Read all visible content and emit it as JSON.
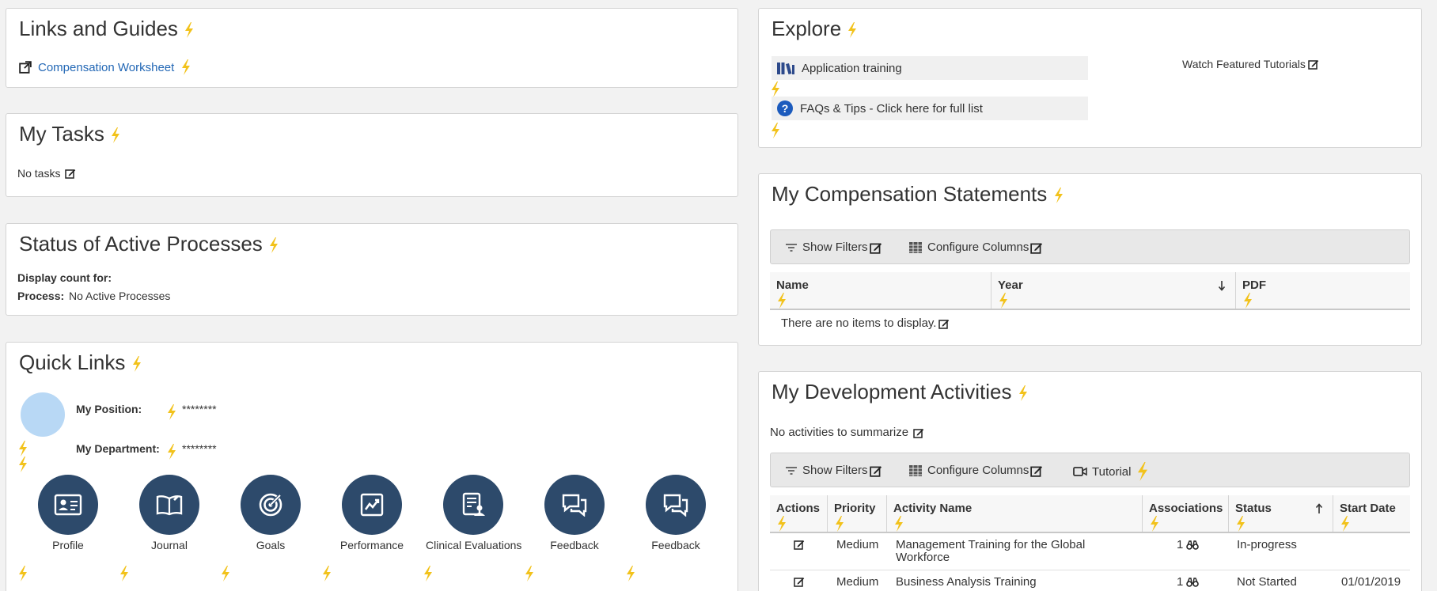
{
  "colors": {
    "accent": "#2267b5",
    "bolt": "#f2c21b",
    "circle": "#2d4a6b",
    "avatar": "#b8d8f5"
  },
  "links_and_guides": {
    "title": "Links and Guides",
    "link_label": "Compensation Worksheet"
  },
  "my_tasks": {
    "title": "My Tasks",
    "empty_text": "No tasks"
  },
  "active_processes": {
    "title": "Status of Active Processes",
    "display_count_label": "Display count for:",
    "process_label": "Process:",
    "process_value": "No Active Processes"
  },
  "quick_links": {
    "title": "Quick Links",
    "position_label": "My Position:",
    "position_value": "********",
    "department_label": "My Department:",
    "department_value": "********",
    "items": [
      {
        "label": "Profile",
        "icon": "profile-card-icon"
      },
      {
        "label": "Journal",
        "icon": "journal-book-icon"
      },
      {
        "label": "Goals",
        "icon": "goals-target-icon"
      },
      {
        "label": "Performance",
        "icon": "performance-chart-icon"
      },
      {
        "label": "Clinical Evaluations",
        "icon": "clinical-evaluation-icon"
      },
      {
        "label": "Feedback",
        "icon": "feedback-chat-icon"
      },
      {
        "label": "Feedback",
        "icon": "feedback-chat-icon"
      }
    ]
  },
  "explore": {
    "title": "Explore",
    "application_training": "Application training",
    "faqs": "FAQs & Tips - Click here for full list",
    "featured_tutorials": "Watch Featured Tutorials"
  },
  "compensation_statements": {
    "title": "My Compensation Statements",
    "show_filters": "Show Filters",
    "configure_columns": "Configure Columns",
    "columns": [
      "Name",
      "Year",
      "PDF"
    ],
    "empty_text": "There are no items to display."
  },
  "development_activities": {
    "title": "My Development Activities",
    "summary_text": "No activities to summarize",
    "show_filters": "Show Filters",
    "configure_columns": "Configure Columns",
    "tutorial": "Tutorial",
    "columns": [
      "Actions",
      "Priority",
      "Activity Name",
      "Associations",
      "Status",
      "Start Date"
    ],
    "rows": [
      {
        "priority": "Medium",
        "activity": "Management Training for the Global",
        "activity_line2": "Workforce",
        "associations": "1",
        "status": "In-progress",
        "start_date": ""
      },
      {
        "priority": "Medium",
        "activity": "Business Analysis Training",
        "activity_line2": "",
        "associations": "1",
        "status": "Not Started",
        "start_date": "01/01/2019"
      }
    ]
  }
}
